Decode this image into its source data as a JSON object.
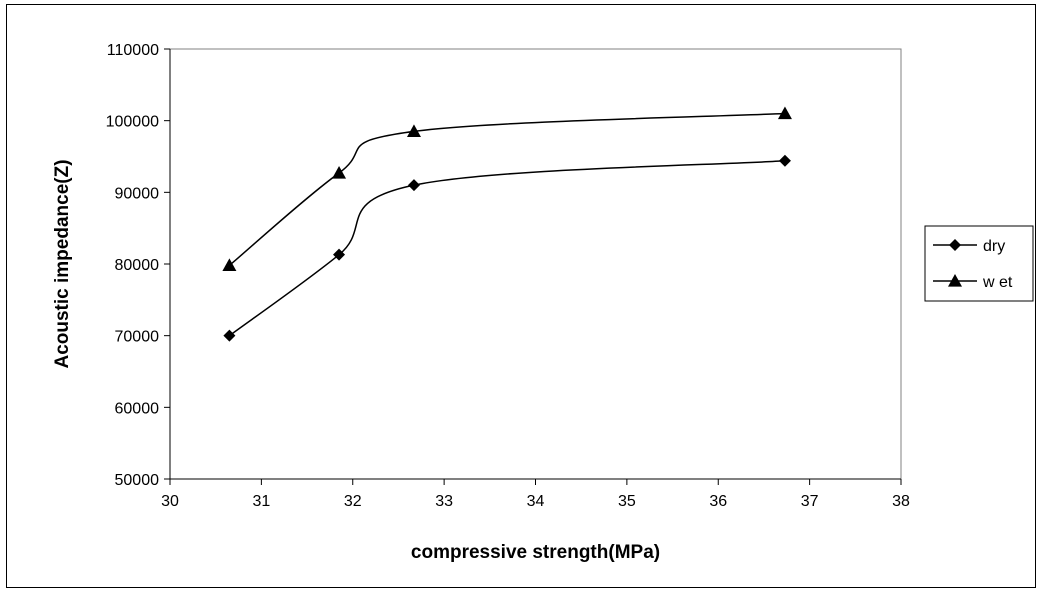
{
  "chart_data": {
    "type": "line",
    "title": "",
    "xlabel": "compressive strength(MPa)",
    "ylabel": "Acoustic impedance(Z)",
    "xlim": [
      30,
      38
    ],
    "ylim": [
      50000,
      110000
    ],
    "x_ticks": [
      30,
      31,
      32,
      33,
      34,
      35,
      36,
      37,
      38
    ],
    "y_ticks": [
      50000,
      60000,
      70000,
      80000,
      90000,
      100000,
      110000
    ],
    "x_tick_labels": [
      "30",
      "31",
      "32",
      "33",
      "34",
      "35",
      "36",
      "37",
      "38"
    ],
    "y_tick_labels": [
      "50000",
      "60000",
      "70000",
      "80000",
      "90000",
      "100000",
      "110000"
    ],
    "grid": false,
    "legend_position": "right",
    "smoothed": true,
    "series": [
      {
        "name": "dry",
        "marker": "diamond",
        "color": "#000000",
        "x": [
          30.65,
          31.85,
          32.67,
          36.73
        ],
        "y": [
          70000,
          81300,
          91000,
          94400
        ]
      },
      {
        "name": "w et",
        "marker": "triangle",
        "color": "#000000",
        "x": [
          30.65,
          31.85,
          32.67,
          36.73
        ],
        "y": [
          79800,
          92700,
          98500,
          101000
        ]
      }
    ]
  }
}
